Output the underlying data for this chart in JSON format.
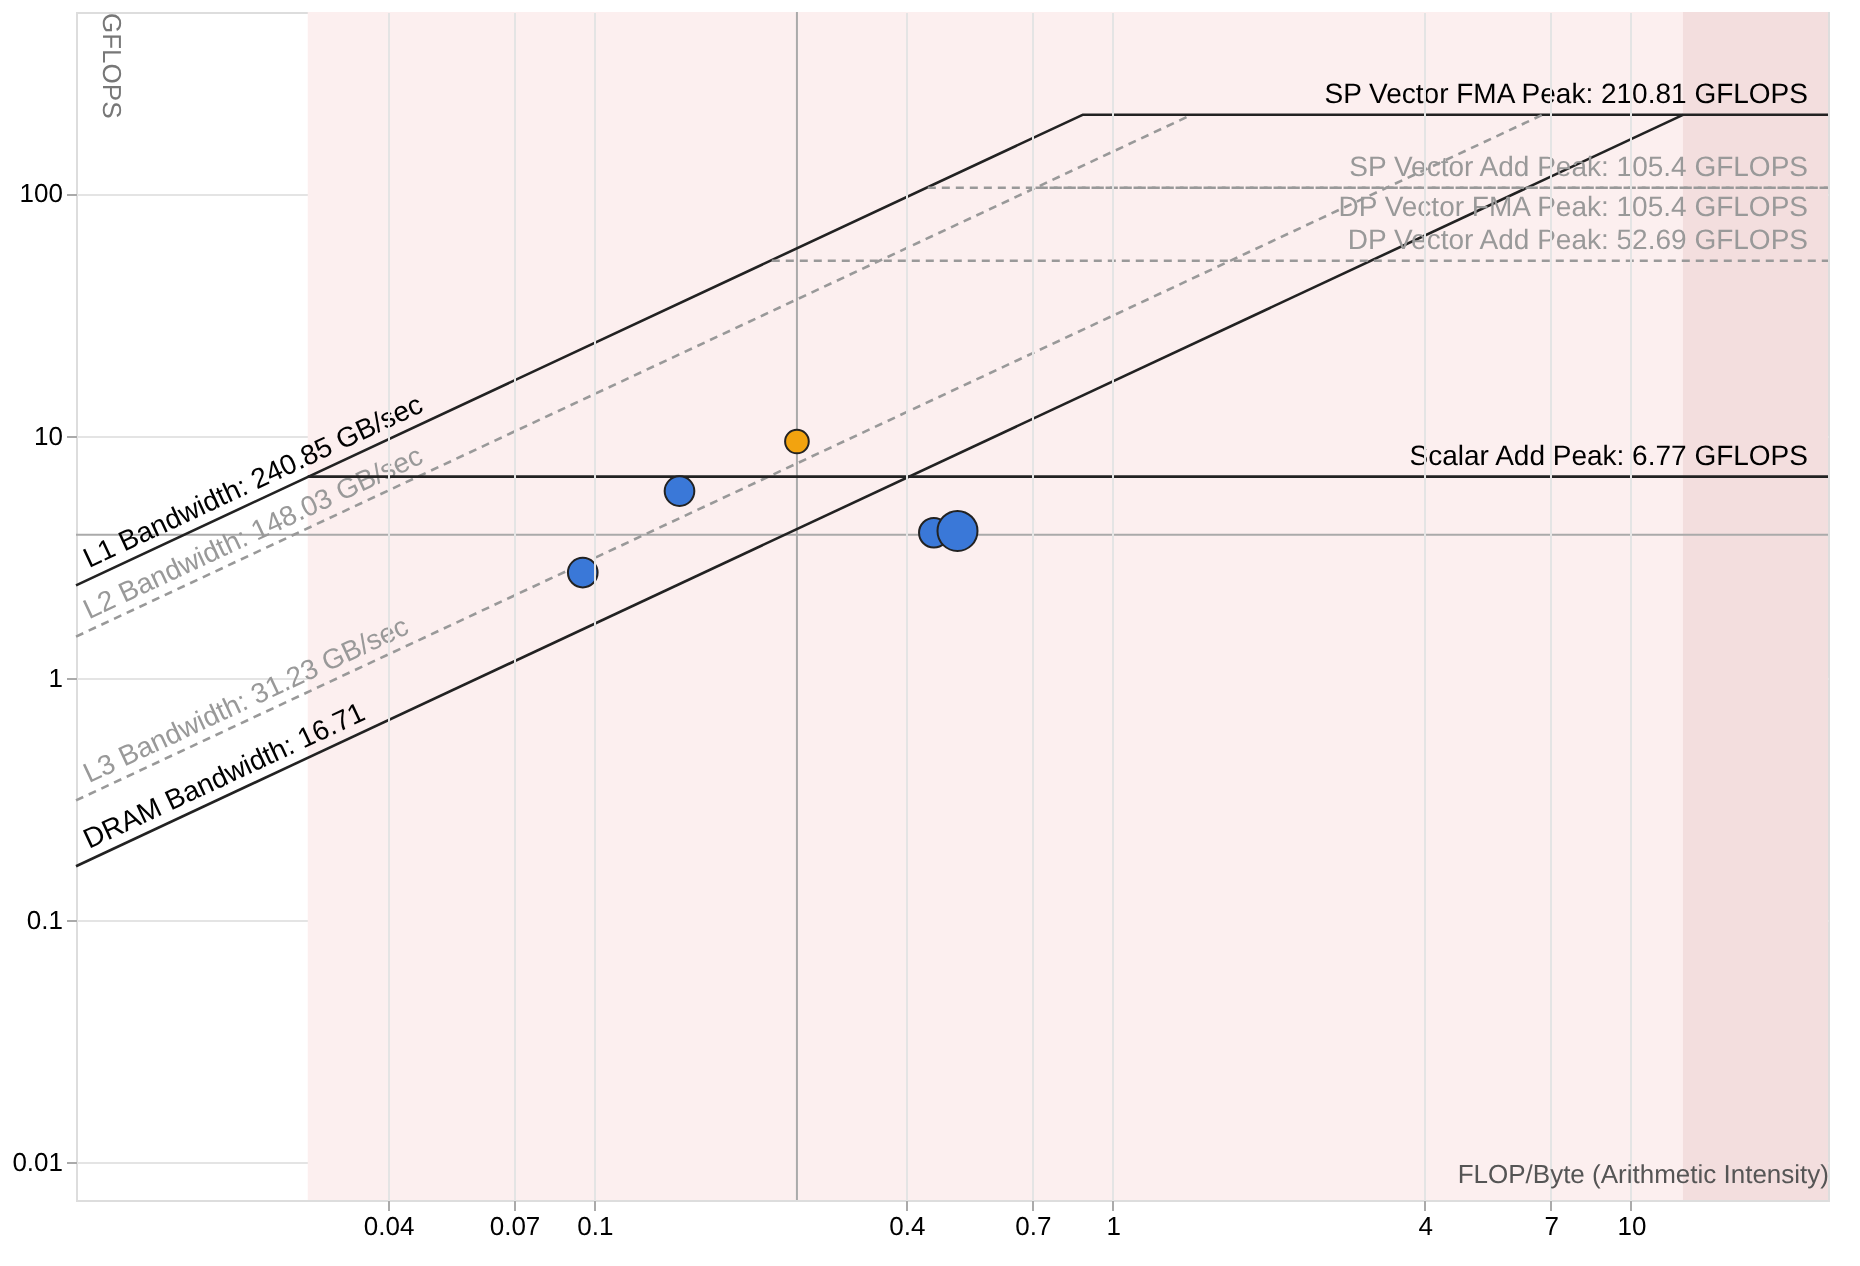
{
  "chart_data": {
    "type": "line",
    "ylabel": "GFLOPS",
    "xlabel": "FLOP/Byte (Arithmetic Intensity)",
    "log": "xy",
    "grid": true,
    "annotations": [
      {
        "text": "SP Vector FMA Peak: 210.81 GFLOPS",
        "x": 24,
        "y": 210.81
      }
    ],
    "xlim": [
      0.01,
      24
    ],
    "ylim": [
      0.007,
      560
    ],
    "xticks": [
      0.04,
      0.07,
      0.1,
      0.4,
      0.7,
      1,
      4,
      7,
      10
    ],
    "yticks": [
      0.01,
      0.1,
      1,
      10,
      100
    ],
    "series": [
      {
        "name": "L1 Bandwidth: 240.85 GB/sec",
        "color": "#222222",
        "line_style": "solid",
        "marker": "none",
        "x": [
          0.01,
          0.875,
          24
        ],
        "values": [
          2.41,
          210.81,
          210.81
        ]
      },
      {
        "name": "L2 Bandwidth: 148.03 GB/sec",
        "color": "#999999",
        "line_style": "dashed",
        "marker": "none",
        "x": [
          0.01,
          1.42
        ],
        "values": [
          1.48,
          210.81
        ]
      },
      {
        "name": "L3 Bandwidth: 31.23 GB/sec",
        "color": "#999999",
        "line_style": "dashed",
        "marker": "none",
        "x": [
          0.01,
          6.75
        ],
        "values": [
          0.312,
          210.81
        ]
      },
      {
        "name": "DRAM Bandwidth: 16.71",
        "color": "#222222",
        "line_style": "solid",
        "marker": "none",
        "x": [
          0.01,
          12.6
        ],
        "values": [
          0.167,
          210.81
        ]
      },
      {
        "name": "SP Vector Add Peak: 105.4 GFLOPS",
        "color": "#999999",
        "line_style": "dashed",
        "marker": "none",
        "x": [
          0.44,
          24
        ],
        "values": [
          105.4,
          105.4
        ]
      },
      {
        "name": "DP Vector FMA Peak: 105.4 GFLOPS",
        "color": "#999999",
        "line_style": "dashed",
        "marker": "none",
        "x": [
          0.71,
          24
        ],
        "values": [
          105.4,
          105.4
        ]
      },
      {
        "name": "DP Vector Add Peak: 52.69 GFLOPS",
        "color": "#999999",
        "line_style": "dashed",
        "marker": "none",
        "x": [
          0.22,
          24
        ],
        "values": [
          52.69,
          52.69
        ]
      },
      {
        "name": "Scalar Add Peak: 6.77 GFLOPS",
        "color": "#222222",
        "line_style": "solid",
        "marker": "none",
        "x": [
          0.028,
          24
        ],
        "values": [
          6.77,
          6.77
        ]
      },
      {
        "type": "bubble",
        "marker": "circle",
        "color": "#3a78d8",
        "x": [
          0.095,
          0.146,
          0.452,
          0.502
        ],
        "values": [
          2.72,
          5.9,
          3.97,
          4.04
        ],
        "sizes": [
          0.55,
          0.55,
          0.55,
          1
        ]
      },
      {
        "type": "bubble",
        "marker": "circle",
        "color": "#f2a30f",
        "x": [
          0.246
        ],
        "values": [
          9.45
        ],
        "sizes": [
          0.35
        ]
      }
    ],
    "ref_lines": [
      {
        "axis": "x",
        "value": 0.246,
        "color": "#aaaaaa"
      },
      {
        "axis": "y",
        "value": 3.9,
        "color": "#aaaaaa"
      }
    ],
    "bands": [
      {
        "axis": "x",
        "from": 0.028,
        "to": 24,
        "color": "#fcefef"
      },
      {
        "axis": "x",
        "from": 12.6,
        "to": 24,
        "color": "#f3dede"
      }
    ]
  }
}
